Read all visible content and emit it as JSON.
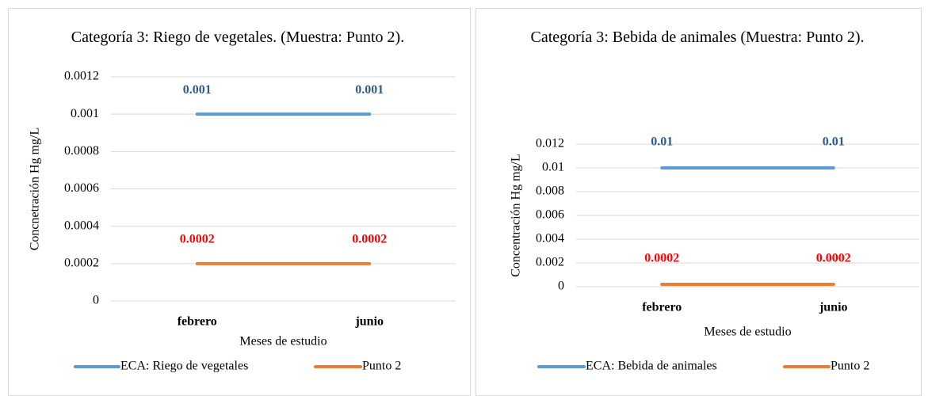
{
  "chart_data": [
    {
      "type": "line",
      "title": "Categoría 3: Riego de vegetales. (Muestra: Punto 2).",
      "x_label": "Meses de estudio",
      "y_label": "Concnetración  Hg mg/L",
      "categories": [
        "febrero",
        "junio"
      ],
      "series": [
        {
          "name": "ECA: Riego de vegetales",
          "color": "#5b9bd5",
          "label_color": "#2e5c8a",
          "values": [
            0.001,
            0.001
          ]
        },
        {
          "name": "Punto 2",
          "color": "#ed7d31",
          "label_color": "#ff0000",
          "values": [
            0.0002,
            0.0002
          ]
        }
      ],
      "ylim": [
        0,
        0.0012
      ],
      "yticks": [
        0,
        0.0002,
        0.0004,
        0.0006,
        0.0008,
        0.001,
        0.0012
      ],
      "grid": true,
      "legend": "bottom"
    },
    {
      "type": "line",
      "title": "Categoría 3: Bebida de animales (Muestra: Punto 2).",
      "x_label": "Meses de estudio",
      "y_label": "Concentración  Hg mg/L",
      "categories": [
        "febrero",
        "junio"
      ],
      "series": [
        {
          "name": "ECA: Bebida de animales",
          "color": "#5b9bd5",
          "label_color": "#2e5c8a",
          "values": [
            0.01,
            0.01
          ]
        },
        {
          "name": "Punto 2",
          "color": "#ed7d31",
          "label_color": "#ff0000",
          "values": [
            0.0002,
            0.0002
          ]
        }
      ],
      "ylim": [
        0,
        0.012
      ],
      "yticks": [
        0,
        0.002,
        0.004,
        0.006,
        0.008,
        0.01,
        0.012
      ],
      "grid": true,
      "legend": "bottom"
    }
  ]
}
